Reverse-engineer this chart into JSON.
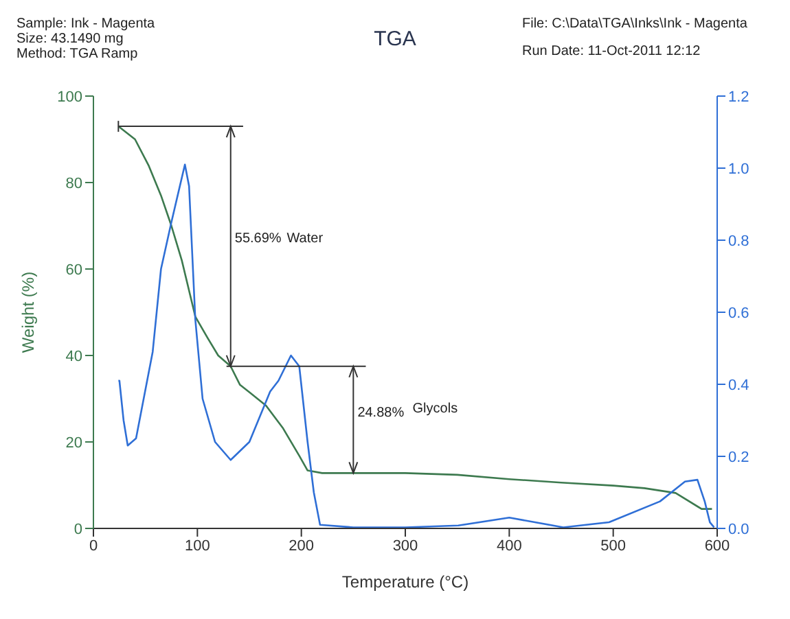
{
  "chart_data": {
    "type": "line",
    "title": "TGA",
    "xlabel": "Temperature (°C)",
    "ylabel": "Weight (%)",
    "annotations": [
      "Sample: Ink - Magenta",
      "Size:  43.1490 mg",
      "Method: TGA Ramp",
      "File: C:\\Data\\TGA\\Inks\\Ink - Magenta",
      "Run Date: 11-Oct-2011 12:12",
      "55.69%",
      "Water",
      "24.88%",
      "Glycols"
    ],
    "xlim": [
      0,
      600
    ],
    "xticks": [
      0,
      100,
      200,
      300,
      400,
      500,
      600
    ],
    "ylim": [
      0,
      100
    ],
    "yticks": [
      0,
      20,
      40,
      60,
      80,
      100
    ],
    "y2lim": [
      0,
      1.2
    ],
    "y2ticks": [
      {
        "value": 0,
        "label": "0.0"
      },
      {
        "value": 0.2,
        "label": "0.2"
      },
      {
        "value": 0.4,
        "label": "0.4"
      },
      {
        "value": 0.6,
        "label": "0.6"
      },
      {
        "value": 0.8,
        "label": "0.8"
      },
      {
        "value": 1,
        "label": "1.0"
      },
      {
        "value": 1.2,
        "label": "1.2"
      }
    ],
    "grid": false,
    "marker": "none",
    "line_style": "solid",
    "series": [
      {
        "color": "#3d7a4f",
        "x": [
          24,
          40,
          53,
          65,
          75,
          85,
          98,
          110,
          120,
          132,
          141,
          150,
          166,
          182,
          198,
          206,
          220,
          300,
          350,
          400,
          450,
          500,
          530,
          560,
          585,
          595
        ],
        "values": [
          93,
          90,
          84,
          77,
          70,
          62,
          49,
          44,
          40,
          37.5,
          33.2,
          31.5,
          28.4,
          23.3,
          16.8,
          13.4,
          12.8,
          12.8,
          12.4,
          11.4,
          10.6,
          9.9,
          9.3,
          8.2,
          4.5,
          4.5
        ]
      },
      {
        "color": "#2f6fd6",
        "axis": "y2",
        "x": [
          24,
          25,
          29,
          33,
          41,
          57,
          65,
          75,
          88,
          92,
          98,
          105,
          117,
          132,
          150,
          170,
          178,
          190,
          198,
          206,
          212,
          218,
          250,
          300,
          351,
          400,
          452,
          496,
          545,
          569,
          581,
          588,
          593,
          597
        ],
        "values": [
          0.41,
          0.41,
          0.3,
          0.23,
          0.25,
          0.49,
          0.72,
          0.85,
          1.01,
          0.95,
          0.58,
          0.36,
          0.24,
          0.19,
          0.24,
          0.38,
          0.41,
          0.48,
          0.45,
          0.24,
          0.1,
          0.01,
          0.003,
          0.003,
          0.008,
          0.03,
          0.003,
          0.017,
          0.075,
          0.13,
          0.135,
          0.075,
          0.017,
          0.003
        ]
      }
    ]
  }
}
